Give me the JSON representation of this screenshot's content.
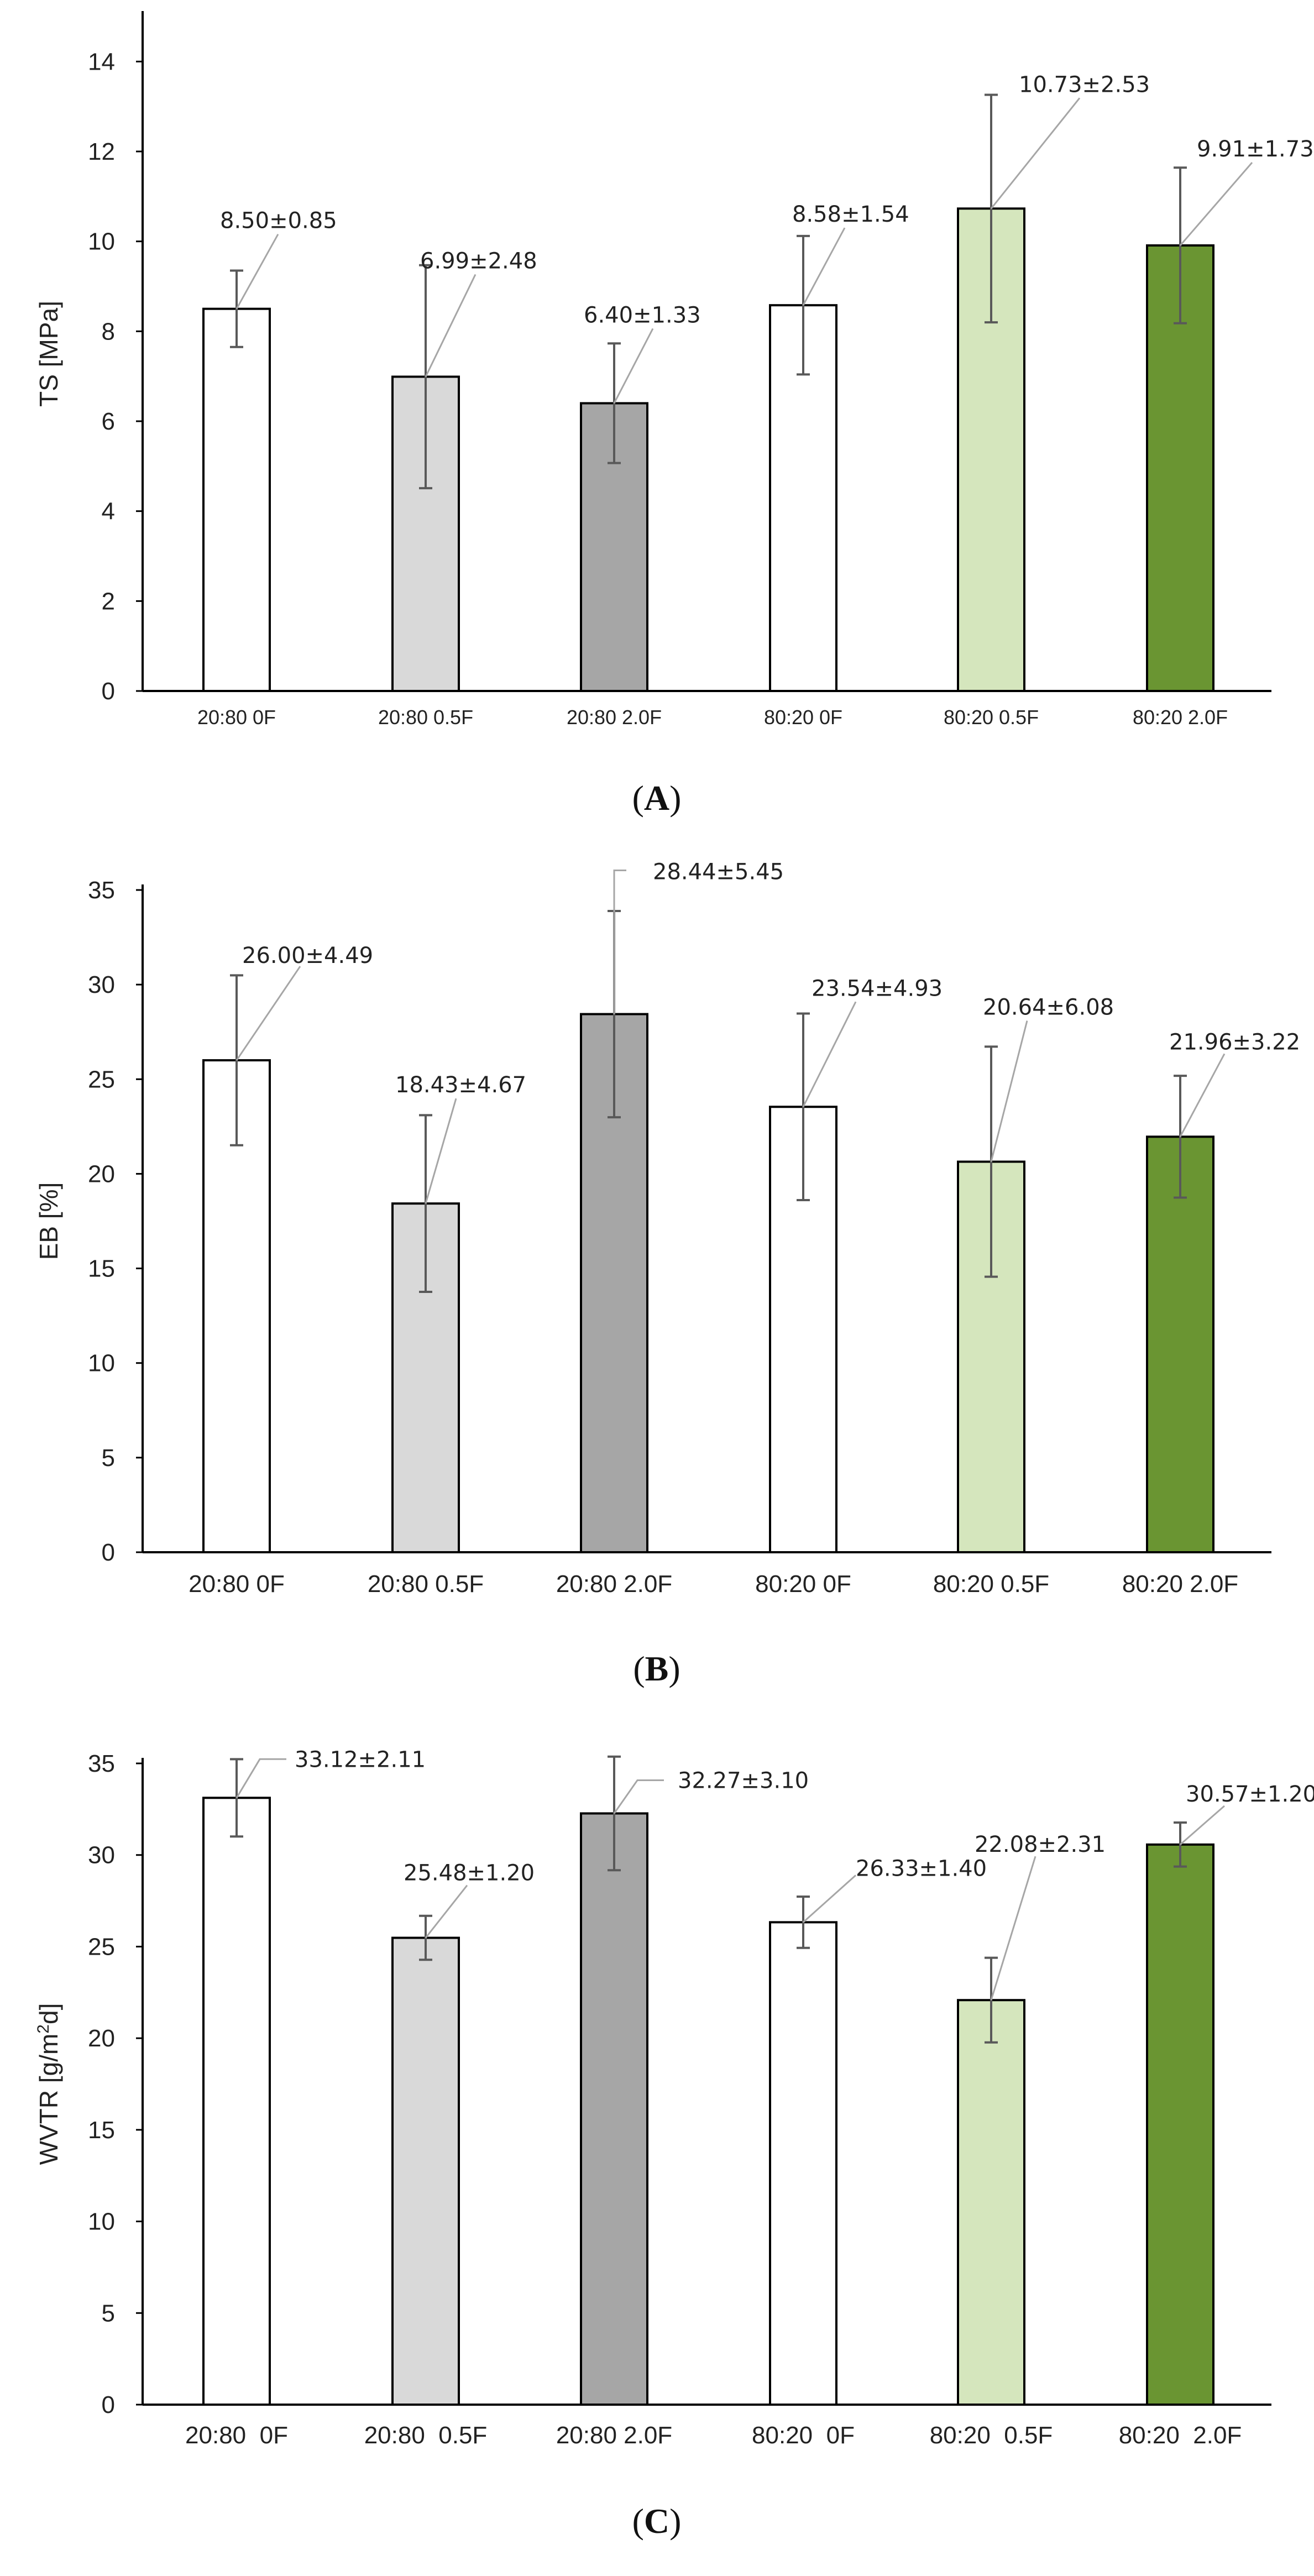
{
  "chart_data": [
    {
      "type": "bar",
      "panel": "A",
      "title": "",
      "xlabel": "",
      "ylabel": "TS [MPa]",
      "ylim": [
        0,
        15
      ],
      "yticks": [
        0,
        2,
        4,
        6,
        8,
        10,
        12,
        14
      ],
      "categories": [
        "20:80 0F",
        "20:80 0.5F",
        "20:80 2.0F",
        "80:20 0F",
        "80:20 0.5F",
        "80:20 2.0F"
      ],
      "values": [
        8.5,
        6.99,
        6.4,
        8.58,
        10.73,
        9.91
      ],
      "errors": [
        0.85,
        2.48,
        1.33,
        1.54,
        2.53,
        1.73
      ],
      "data_labels": [
        "8.50±0.85",
        "6.99±2.48",
        "6.40±1.33",
        "8.58±1.54",
        "10.73±2.53",
        "9.91±1.73"
      ],
      "colors": [
        "#ffffff",
        "#d9d9d9",
        "#a6a6a6",
        "#ffffff",
        "#d5e6bd",
        "#6a9532"
      ]
    },
    {
      "type": "bar",
      "panel": "B",
      "title": "",
      "xlabel": "",
      "ylabel": "EB [%]",
      "ylim": [
        0,
        35
      ],
      "yticks": [
        0,
        5,
        10,
        15,
        20,
        25,
        30,
        35
      ],
      "categories": [
        "20:80 0F",
        "20:80 0.5F",
        "20:80 2.0F",
        "80:20 0F",
        "80:20 0.5F",
        "80:20 2.0F"
      ],
      "values": [
        26.0,
        18.43,
        28.44,
        23.54,
        20.64,
        21.96
      ],
      "errors": [
        4.49,
        4.67,
        5.45,
        4.93,
        6.08,
        3.22
      ],
      "data_labels": [
        "26.00±4.49",
        "18.43±4.67",
        "28.44±5.45",
        "23.54±4.93",
        "20.64±6.08",
        "21.96±3.22"
      ],
      "colors": [
        "#ffffff",
        "#d9d9d9",
        "#a6a6a6",
        "#ffffff",
        "#d5e6bd",
        "#6a9532"
      ]
    },
    {
      "type": "bar",
      "panel": "C",
      "title": "",
      "xlabel": "",
      "ylabel": "WVTR [g/m²d]",
      "ylim": [
        0,
        35
      ],
      "yticks": [
        0,
        5,
        10,
        15,
        20,
        25,
        30,
        35
      ],
      "categories": [
        "20:80  0F",
        "20:80  0.5F",
        "20:80 2.0F",
        "80:20  0F",
        "80:20  0.5F",
        "80:20  2.0F"
      ],
      "values": [
        33.12,
        25.48,
        32.27,
        26.33,
        22.08,
        30.57
      ],
      "errors": [
        2.11,
        1.2,
        3.1,
        1.4,
        2.31,
        1.2
      ],
      "data_labels": [
        "33.12±2.11",
        "25.48±1.20",
        "32.27±3.10",
        "26.33±1.40",
        "22.08±2.31",
        "30.57±1.20"
      ],
      "colors": [
        "#ffffff",
        "#d9d9d9",
        "#a6a6a6",
        "#ffffff",
        "#d5e6bd",
        "#6a9532"
      ]
    }
  ],
  "panel_labels": [
    "(A)",
    "(B)",
    "(C)"
  ],
  "colors": {
    "axis": "#000000",
    "bar_edge": "#000000",
    "error_bar": "#595959",
    "leader_line": "#a6a6a6"
  }
}
